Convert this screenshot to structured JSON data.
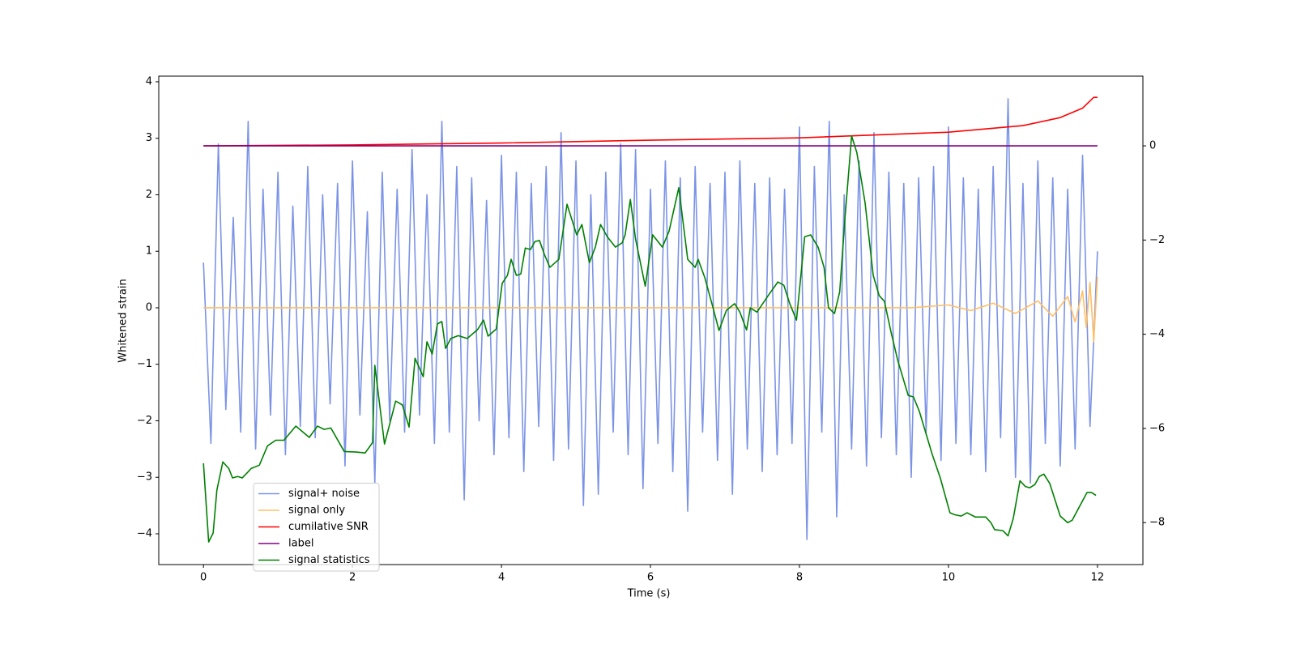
{
  "chart_data": {
    "type": "line",
    "xlabel": "Time (s)",
    "ylabel": "Whitened strain",
    "xlim": [
      -0.6,
      12.61
    ],
    "ylim": [
      -4.545,
      4.1
    ],
    "y2lim": [
      -8.89,
      1.48
    ],
    "xticks": [
      0,
      2,
      4,
      6,
      8,
      10,
      12
    ],
    "yticks": [
      {
        "value": -4,
        "label": "−4"
      },
      {
        "value": -3,
        "label": "−3"
      },
      {
        "value": -2,
        "label": "−2"
      },
      {
        "value": -1,
        "label": "−1"
      },
      0,
      1,
      2,
      3,
      4
    ],
    "y2ticks": [
      {
        "value": -8,
        "label": "−8"
      },
      {
        "value": -6,
        "label": "−6"
      },
      {
        "value": -4,
        "label": "−4"
      },
      {
        "value": -2,
        "label": "−2"
      },
      0
    ],
    "legend": "lower left",
    "series": [
      {
        "name": "signal+ noise",
        "color": "#7b93e6",
        "x": [
          0,
          0.1,
          0.2,
          0.3,
          0.4,
          0.5,
          0.6,
          0.7,
          0.8,
          0.9,
          1,
          1.1,
          1.2,
          1.3,
          1.4,
          1.5,
          1.6,
          1.7,
          1.8,
          1.9,
          2,
          2.1,
          2.2,
          2.3,
          2.4,
          2.5,
          2.6,
          2.7,
          2.8,
          2.9,
          3,
          3.1,
          3.2,
          3.3,
          3.4,
          3.5,
          3.6,
          3.7,
          3.8,
          3.9,
          4,
          4.1,
          4.2,
          4.3,
          4.4,
          4.5,
          4.6,
          4.7,
          4.8,
          4.9,
          5,
          5.1,
          5.2,
          5.3,
          5.4,
          5.5,
          5.6,
          5.7,
          5.8,
          5.9,
          6,
          6.1,
          6.2,
          6.3,
          6.4,
          6.5,
          6.6,
          6.7,
          6.8,
          6.9,
          7,
          7.1,
          7.2,
          7.3,
          7.4,
          7.5,
          7.6,
          7.7,
          7.8,
          7.9,
          8,
          8.1,
          8.2,
          8.3,
          8.4,
          8.5,
          8.6,
          8.7,
          8.8,
          8.9,
          9,
          9.1,
          9.2,
          9.3,
          9.4,
          9.5,
          9.6,
          9.7,
          9.8,
          9.9,
          10,
          10.1,
          10.2,
          10.3,
          10.4,
          10.5,
          10.6,
          10.7,
          10.8,
          10.9,
          11,
          11.1,
          11.2,
          11.3,
          11.4,
          11.5,
          11.6,
          11.7,
          11.8,
          11.9,
          12
        ],
        "values": [
          0.8,
          -2.4,
          2.9,
          -1.8,
          1.6,
          -2.2,
          3.3,
          -2.5,
          2.1,
          -1.9,
          2.4,
          -2.6,
          1.8,
          -2.1,
          2.5,
          -2.3,
          2.0,
          -1.7,
          2.2,
          -2.8,
          2.6,
          -1.9,
          1.7,
          -3.1,
          2.4,
          -2.0,
          2.1,
          -2.2,
          2.8,
          -1.9,
          2.0,
          -2.4,
          3.3,
          -2.2,
          2.5,
          -3.4,
          2.3,
          -2.0,
          1.9,
          -2.6,
          2.7,
          -2.3,
          2.4,
          -2.9,
          2.2,
          -2.1,
          2.5,
          -2.7,
          3.1,
          -2.5,
          2.6,
          -3.5,
          2.0,
          -3.3,
          2.4,
          -2.2,
          2.9,
          -2.6,
          2.8,
          -3.2,
          2.1,
          -2.4,
          2.6,
          -2.9,
          2.3,
          -3.6,
          2.5,
          -2.2,
          2.2,
          -2.7,
          2.4,
          -3.3,
          2.6,
          -2.5,
          2.2,
          -2.9,
          2.3,
          -2.6,
          2.1,
          -2.4,
          3.2,
          -4.1,
          2.5,
          -2.2,
          3.3,
          -3.7,
          2.0,
          -2.5,
          2.6,
          -2.8,
          3.1,
          -2.3,
          2.4,
          -2.6,
          2.2,
          -3.0,
          2.3,
          -2.2,
          2.5,
          -2.7,
          3.2,
          -2.4,
          2.3,
          -2.6,
          2.1,
          -2.9,
          2.5,
          -2.3,
          3.7,
          -3.0,
          2.2,
          -3.1,
          2.6,
          -2.4,
          2.3,
          -2.8,
          2.1,
          -2.5,
          2.7,
          -2.1,
          1.0
        ]
      },
      {
        "name": "signal only",
        "color": "#ffbf66",
        "x": [
          0,
          9.5,
          10,
          10.3,
          10.6,
          10.9,
          11.2,
          11.4,
          11.6,
          11.7,
          11.8,
          11.85,
          11.9,
          11.95,
          12
        ],
        "values": [
          0,
          0,
          0.05,
          -0.05,
          0.08,
          -0.1,
          0.12,
          -0.15,
          0.2,
          -0.25,
          0.3,
          -0.35,
          0.45,
          -0.6,
          0.55
        ]
      },
      {
        "name": "cumilative SNR",
        "color": "#ff0000",
        "axis": "y2",
        "x": [
          0,
          2,
          4,
          6,
          8,
          10,
          11,
          11.5,
          11.8,
          11.95,
          12
        ],
        "values": [
          0,
          0.02,
          0.06,
          0.12,
          0.17,
          0.29,
          0.43,
          0.6,
          0.8,
          1.03,
          1.03
        ]
      },
      {
        "name": "label",
        "color": "#800080",
        "axis": "y2",
        "x": [
          0,
          12
        ],
        "values": [
          0,
          0
        ]
      },
      {
        "name": "signal statistics",
        "color": "#008000",
        "axis": "y2",
        "x": [
          0,
          0.07,
          0.13,
          0.18,
          0.26,
          0.34,
          0.39,
          0.46,
          0.52,
          0.6,
          0.64,
          0.75,
          0.86,
          0.97,
          1.08,
          1.24,
          1.42,
          1.53,
          1.62,
          1.71,
          1.89,
          2.05,
          2.17,
          2.27,
          2.3,
          2.43,
          2.58,
          2.67,
          2.76,
          2.84,
          2.95,
          3.0,
          3.07,
          3.14,
          3.2,
          3.25,
          3.32,
          3.42,
          3.54,
          3.68,
          3.76,
          3.82,
          3.93,
          4.01,
          4.08,
          4.13,
          4.2,
          4.26,
          4.32,
          4.39,
          4.45,
          4.51,
          4.58,
          4.65,
          4.77,
          4.88,
          5.01,
          5.08,
          5.18,
          5.26,
          5.33,
          5.42,
          5.53,
          5.62,
          5.66,
          5.73,
          5.8,
          5.93,
          6.03,
          6.16,
          6.25,
          6.38,
          6.5,
          6.6,
          6.64,
          6.73,
          6.84,
          6.92,
          7.02,
          7.13,
          7.2,
          7.29,
          7.34,
          7.43,
          7.58,
          7.71,
          7.79,
          7.87,
          7.96,
          8.07,
          8.15,
          8.25,
          8.33,
          8.39,
          8.47,
          8.54,
          8.61,
          8.7,
          8.77,
          8.88,
          8.99,
          9.07,
          9.14,
          9.23,
          9.32,
          9.46,
          9.53,
          9.61,
          9.78,
          9.89,
          10.02,
          10.08,
          10.17,
          10.25,
          10.36,
          10.5,
          10.57,
          10.62,
          10.73,
          10.8,
          10.87,
          10.96,
          11.03,
          11.09,
          11.16,
          11.22,
          11.28,
          11.36,
          11.5,
          11.6,
          11.66,
          11.86,
          11.92,
          11.98
        ],
        "values": [
          -6.74,
          -8.41,
          -8.22,
          -7.31,
          -6.71,
          -6.85,
          -7.05,
          -7.02,
          -7.05,
          -6.92,
          -6.85,
          -6.78,
          -6.37,
          -6.25,
          -6.25,
          -5.95,
          -6.19,
          -5.95,
          -6.02,
          -5.99,
          -6.49,
          -6.5,
          -6.52,
          -6.3,
          -4.66,
          -6.33,
          -5.42,
          -5.5,
          -5.97,
          -4.51,
          -4.9,
          -4.16,
          -4.42,
          -3.78,
          -3.73,
          -4.3,
          -4.09,
          -4.03,
          -4.09,
          -3.9,
          -3.7,
          -4.04,
          -3.89,
          -2.92,
          -2.75,
          -2.41,
          -2.75,
          -2.72,
          -2.17,
          -2.2,
          -2.03,
          -2.01,
          -2.32,
          -2.58,
          -2.41,
          -1.24,
          -1.89,
          -1.67,
          -2.48,
          -2.15,
          -1.67,
          -1.93,
          -2.15,
          -2.06,
          -1.89,
          -1.14,
          -1.98,
          -2.98,
          -1.89,
          -2.15,
          -1.81,
          -0.89,
          -2.41,
          -2.58,
          -2.41,
          -2.8,
          -3.44,
          -3.92,
          -3.49,
          -3.35,
          -3.53,
          -3.91,
          -3.44,
          -3.53,
          -3.18,
          -2.89,
          -2.96,
          -3.35,
          -3.7,
          -1.93,
          -1.89,
          -2.15,
          -2.58,
          -3.44,
          -3.56,
          -3.1,
          -1.55,
          0.21,
          -0.14,
          -1.2,
          -2.75,
          -3.18,
          -3.3,
          -3.96,
          -4.56,
          -5.3,
          -5.33,
          -5.64,
          -6.54,
          -7.05,
          -7.79,
          -7.83,
          -7.86,
          -7.79,
          -7.88,
          -7.88,
          -8.0,
          -8.15,
          -8.17,
          -8.28,
          -7.91,
          -7.11,
          -7.23,
          -7.26,
          -7.19,
          -7.02,
          -6.97,
          -7.17,
          -7.86,
          -8.0,
          -7.95,
          -7.36,
          -7.36,
          -7.42
        ]
      }
    ]
  }
}
